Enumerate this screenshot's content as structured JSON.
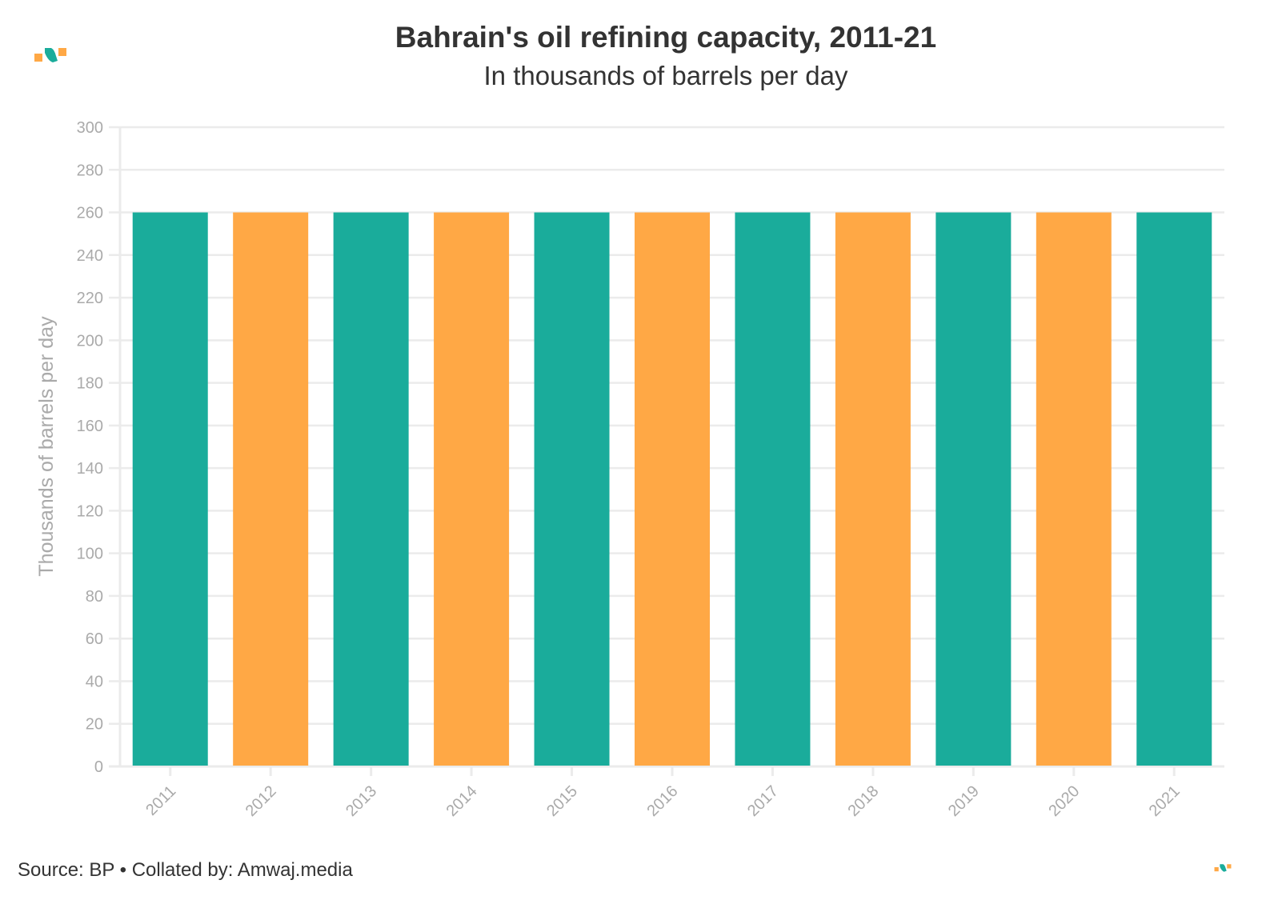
{
  "chart_data": {
    "type": "bar",
    "title": "Bahrain's oil refining capacity, 2011-21",
    "subtitle": "In thousands of barrels per day",
    "xlabel": "",
    "ylabel": "Thousands of barrels per day",
    "ylim": [
      0,
      300
    ],
    "yticks": [
      0,
      20,
      40,
      60,
      80,
      100,
      120,
      140,
      160,
      180,
      200,
      220,
      240,
      260,
      280,
      300
    ],
    "grid": true,
    "categories": [
      "2011",
      "2012",
      "2013",
      "2014",
      "2015",
      "2016",
      "2017",
      "2018",
      "2019",
      "2020",
      "2021"
    ],
    "values": [
      260,
      260,
      260,
      260,
      260,
      260,
      260,
      260,
      260,
      260,
      260
    ],
    "bar_colors": [
      "#1aac9b",
      "#ffa845"
    ],
    "source": "Source: BP • Collated by: Amwaj.media"
  },
  "colors": {
    "teal": "#1aac9b",
    "orange": "#ffa845",
    "grid": "#ebebeb",
    "tick_text": "#aaaaaa"
  }
}
